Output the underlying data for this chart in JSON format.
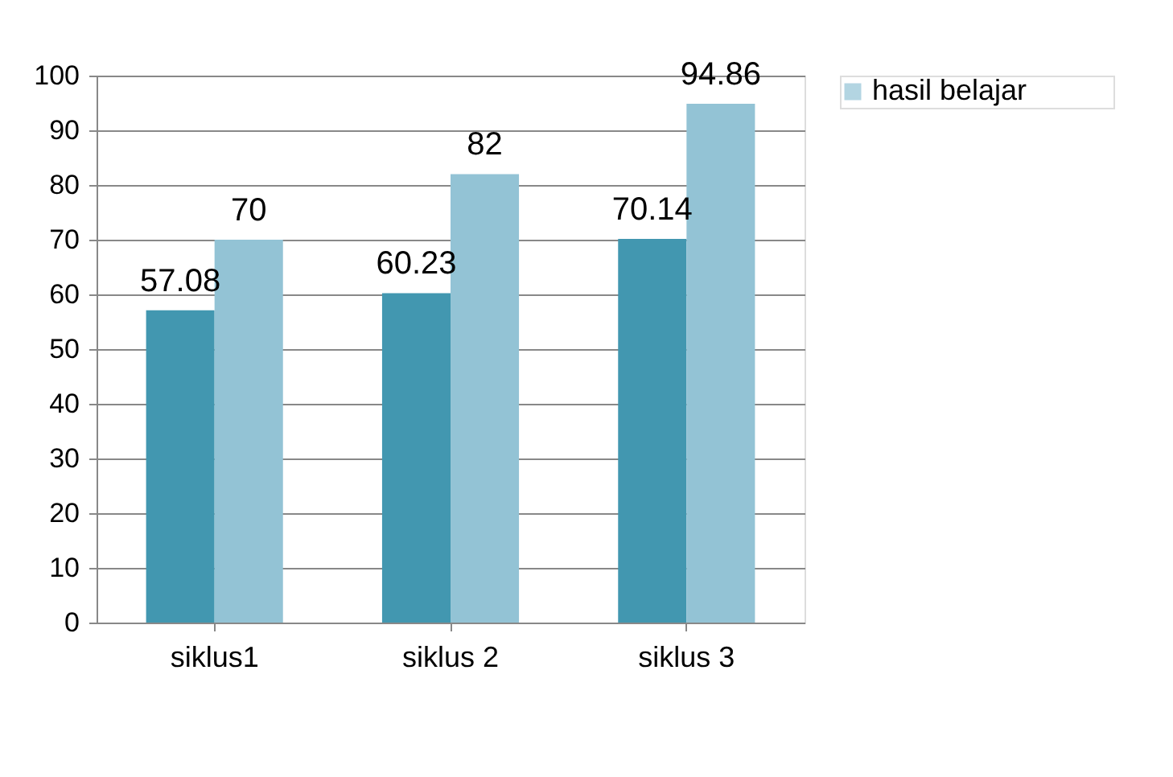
{
  "chart_data": {
    "type": "bar",
    "categories": [
      "siklus1",
      "siklus 2",
      "siklus 3"
    ],
    "series": [
      {
        "color": "#4297b0",
        "values": [
          57.08,
          60.23,
          70.14
        ]
      },
      {
        "name": "hasil belajar",
        "color": "#93c3d5",
        "values": [
          70,
          82,
          94.86
        ]
      }
    ],
    "ylim": [
      0,
      100
    ],
    "yticks": [
      0,
      10,
      20,
      30,
      40,
      50,
      60,
      70,
      80,
      90,
      100
    ],
    "grid": "y",
    "legend": "right",
    "data_labels": true
  }
}
